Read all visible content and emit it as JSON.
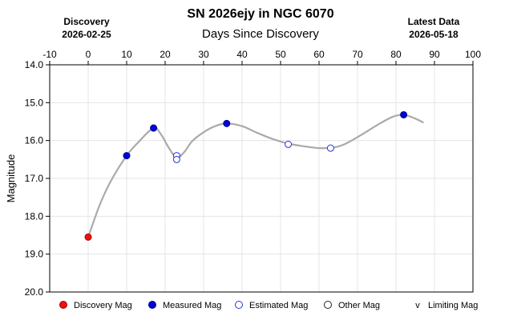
{
  "header": {
    "title": "SN 2026ejy in NGC 6070",
    "left_label": "Discovery",
    "left_date": "2026-02-25",
    "right_label": "Latest Data",
    "right_date": "2026-05-18"
  },
  "colors": {
    "discovery": "#ee1111",
    "measured": "#0000dd",
    "estimated": "#2233dd",
    "other": "#222222",
    "curve": "#aaaaaa",
    "grid": "#e4e4e4"
  },
  "legend": [
    {
      "label": "Discovery Mag",
      "symbol": "filled-red-circle"
    },
    {
      "label": "Measured Mag",
      "symbol": "filled-blue-circle"
    },
    {
      "label": "Estimated Mag",
      "symbol": "open-blue-circle"
    },
    {
      "label": "Other Mag",
      "symbol": "open-black-circle"
    },
    {
      "label": "Limiting Mag",
      "symbol": "v-marker",
      "glyph": "v"
    }
  ],
  "chart_data": {
    "type": "scatter",
    "title": "SN 2026ejy in NGC 6070",
    "xlabel": "Days Since Discovery",
    "ylabel": "Magnitude",
    "xlim": [
      -10,
      100
    ],
    "ylim": [
      20.0,
      14.0
    ],
    "y_inverted": true,
    "x_ticks": [
      -10,
      0,
      10,
      20,
      30,
      40,
      50,
      60,
      70,
      80,
      90,
      100
    ],
    "y_ticks": [
      14.0,
      15.0,
      16.0,
      17.0,
      18.0,
      19.0,
      20.0
    ],
    "x_tick_labels": [
      "-10",
      "0",
      "10",
      "20",
      "30",
      "40",
      "50",
      "60",
      "70",
      "80",
      "90",
      "100"
    ],
    "y_tick_labels": [
      "14.0",
      "15.0",
      "16.0",
      "17.0",
      "18.0",
      "19.0",
      "20.0"
    ],
    "x_axis_position": "top",
    "grid": true,
    "legend_position": "bottom",
    "series": [
      {
        "name": "Discovery Mag",
        "style": "filled-red",
        "points": [
          {
            "x": 0,
            "y": 18.55
          }
        ]
      },
      {
        "name": "Measured Mag",
        "style": "filled-blue",
        "points": [
          {
            "x": 10,
            "y": 16.4
          },
          {
            "x": 17,
            "y": 15.67
          },
          {
            "x": 36,
            "y": 15.55
          },
          {
            "x": 82,
            "y": 15.32
          }
        ]
      },
      {
        "name": "Estimated Mag",
        "style": "open-blue",
        "points": [
          {
            "x": 23,
            "y": 16.4
          },
          {
            "x": 23,
            "y": 16.5
          },
          {
            "x": 52,
            "y": 16.1
          },
          {
            "x": 63,
            "y": 16.2
          }
        ]
      },
      {
        "name": "Other Mag",
        "style": "open-black",
        "points": []
      },
      {
        "name": "Limiting Mag",
        "style": "v-marker",
        "points": []
      }
    ],
    "fit_curve": [
      {
        "x": 0,
        "y": 18.55
      },
      {
        "x": 3,
        "y": 17.7
      },
      {
        "x": 6,
        "y": 17.05
      },
      {
        "x": 10,
        "y": 16.4
      },
      {
        "x": 13,
        "y": 16.05
      },
      {
        "x": 17,
        "y": 15.67
      },
      {
        "x": 19,
        "y": 15.85
      },
      {
        "x": 21,
        "y": 16.2
      },
      {
        "x": 23,
        "y": 16.45
      },
      {
        "x": 25,
        "y": 16.3
      },
      {
        "x": 27,
        "y": 16.02
      },
      {
        "x": 30,
        "y": 15.78
      },
      {
        "x": 33,
        "y": 15.62
      },
      {
        "x": 36,
        "y": 15.55
      },
      {
        "x": 40,
        "y": 15.62
      },
      {
        "x": 44,
        "y": 15.8
      },
      {
        "x": 48,
        "y": 15.96
      },
      {
        "x": 52,
        "y": 16.08
      },
      {
        "x": 56,
        "y": 16.15
      },
      {
        "x": 60,
        "y": 16.2
      },
      {
        "x": 64,
        "y": 16.18
      },
      {
        "x": 67,
        "y": 16.08
      },
      {
        "x": 71,
        "y": 15.85
      },
      {
        "x": 75,
        "y": 15.6
      },
      {
        "x": 79,
        "y": 15.38
      },
      {
        "x": 82,
        "y": 15.32
      },
      {
        "x": 85,
        "y": 15.42
      },
      {
        "x": 87,
        "y": 15.52
      }
    ]
  }
}
